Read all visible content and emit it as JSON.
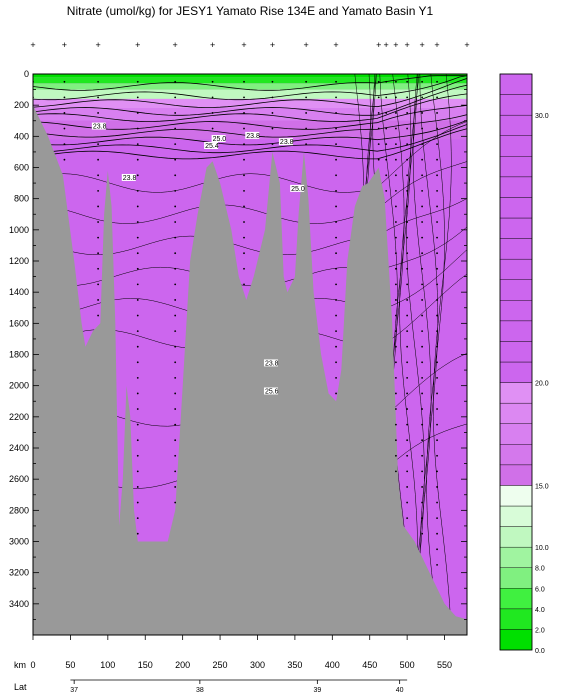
{
  "chart_data": {
    "type": "heatmap",
    "title": "Nitrate (umol/kg) for JESY1 Yamato Rise 134E and Yamato Basin Y1",
    "xlabel": "km",
    "x2label": "Lat",
    "ylabel": "",
    "xlim": [
      0,
      580
    ],
    "ylim": [
      3600,
      0
    ],
    "x_ticks": [
      0,
      50,
      100,
      150,
      200,
      250,
      300,
      350,
      400,
      450,
      500,
      550
    ],
    "y_ticks": [
      0,
      200,
      400,
      600,
      800,
      1000,
      1200,
      1400,
      1600,
      1800,
      2000,
      2200,
      2400,
      2600,
      2800,
      3000,
      3200,
      3400
    ],
    "lat_ticks": [
      {
        "km": 55,
        "label": "37"
      },
      {
        "km": 223,
        "label": "38"
      },
      {
        "km": 380,
        "label": "39"
      },
      {
        "km": 490,
        "label": "40"
      }
    ],
    "station_km": [
      0,
      42,
      87,
      140,
      190,
      240,
      282,
      320,
      365,
      405,
      462,
      472,
      485,
      500,
      520,
      540,
      585
    ],
    "colorbar": {
      "levels": [
        0.0,
        2.0,
        4.0,
        6.0,
        8.0,
        10.0,
        12.0,
        14.0,
        15.0,
        20.0,
        30.0
      ],
      "labels": [
        "0.0",
        "2.0",
        "4.0",
        "6.0",
        "8.0",
        "10.0",
        "15.0",
        "20.0",
        "30.0"
      ],
      "colors_low": [
        "#00e000",
        "#20e820",
        "#40f040",
        "#80f080",
        "#a0f4a0",
        "#c0f8c0",
        "#d8fcd8",
        "#eefeee"
      ],
      "colors_mid": [
        "#d070e8",
        "#d478ec",
        "#d880f0",
        "#dc88f2",
        "#e090f4"
      ],
      "color_high": "#cc66ee"
    },
    "contour_labels": [
      "23.8",
      "23.8",
      "23.8",
      "23.8",
      "25.0",
      "25.0",
      "25.4",
      "23.8",
      "25.6"
    ],
    "seafloor_color": "#999999",
    "water_color": "#cc66ee",
    "bathymetry_km_depth": [
      [
        0,
        200
      ],
      [
        20,
        400
      ],
      [
        40,
        650
      ],
      [
        55,
        1200
      ],
      [
        60,
        1400
      ],
      [
        65,
        1600
      ],
      [
        70,
        1750
      ],
      [
        80,
        1650
      ],
      [
        90,
        1600
      ],
      [
        95,
        900
      ],
      [
        100,
        620
      ],
      [
        105,
        850
      ],
      [
        110,
        1600
      ],
      [
        115,
        2900
      ],
      [
        120,
        2600
      ],
      [
        125,
        2000
      ],
      [
        130,
        2200
      ],
      [
        135,
        2800
      ],
      [
        140,
        3000
      ],
      [
        160,
        3000
      ],
      [
        180,
        3000
      ],
      [
        190,
        2800
      ],
      [
        200,
        2000
      ],
      [
        210,
        1200
      ],
      [
        220,
        900
      ],
      [
        232,
        600
      ],
      [
        240,
        560
      ],
      [
        250,
        700
      ],
      [
        265,
        1000
      ],
      [
        275,
        1300
      ],
      [
        285,
        1450
      ],
      [
        295,
        1300
      ],
      [
        310,
        1000
      ],
      [
        320,
        500
      ],
      [
        330,
        700
      ],
      [
        335,
        1300
      ],
      [
        340,
        1400
      ],
      [
        350,
        1300
      ],
      [
        355,
        900
      ],
      [
        362,
        500
      ],
      [
        368,
        800
      ],
      [
        375,
        1400
      ],
      [
        385,
        1800
      ],
      [
        395,
        2050
      ],
      [
        405,
        2100
      ],
      [
        412,
        1900
      ],
      [
        420,
        1200
      ],
      [
        430,
        850
      ],
      [
        440,
        720
      ],
      [
        448,
        700
      ],
      [
        455,
        650
      ],
      [
        462,
        600
      ],
      [
        470,
        800
      ],
      [
        480,
        1600
      ],
      [
        488,
        2600
      ],
      [
        495,
        2900
      ],
      [
        510,
        3000
      ],
      [
        530,
        3200
      ],
      [
        550,
        3400
      ],
      [
        565,
        3480
      ],
      [
        580,
        3500
      ]
    ]
  }
}
